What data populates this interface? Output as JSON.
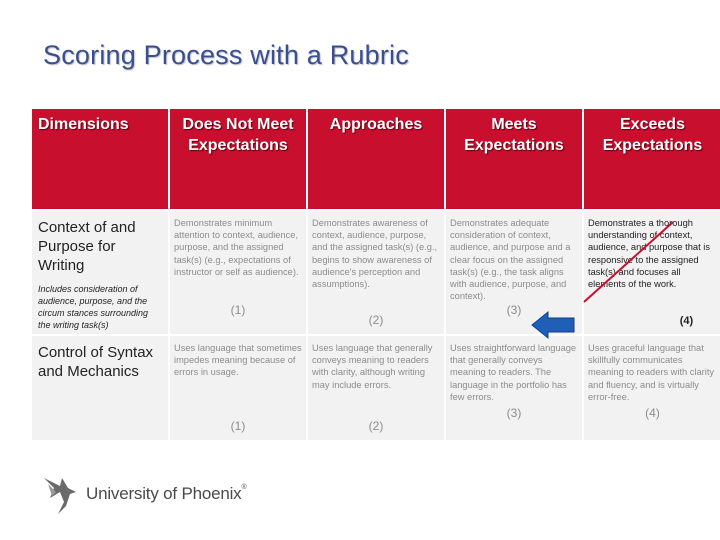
{
  "slide": {
    "title": "Scoring Process with a Rubric"
  },
  "table": {
    "headers": {
      "dimensions": "Dimensions",
      "does_not_meet": "Does Not Meet Expectations",
      "approaches": "Approaches",
      "meets": "Meets Expectations",
      "exceeds": "Exceeds Expectations"
    },
    "rows": [
      {
        "dimension": "Context of and Purpose for Writing",
        "note": "Includes consideration of audience, purpose, and the circum stances surrounding the writing task(s)",
        "cells": [
          {
            "text": "Demonstrates minimum attention to context, audience, purpose, and the assigned task(s) (e.g., expectations of instructor or self as audience).",
            "score": "(1)"
          },
          {
            "text": "Demonstrates awareness of context, audience, purpose, and the assigned task(s) (e.g., begins to show awareness of audience's perception and assumptions).",
            "score": "(2)"
          },
          {
            "text": "Demonstrates adequate consideration of context, audience, and purpose and a clear focus on the assigned task(s) (e.g., the task aligns with audience, purpose, and context).",
            "score": "(3)"
          },
          {
            "text": "Demonstrates a thorough understanding of context, audience, and purpose that is responsive to the assigned task(s) and focuses all elements of the work.",
            "score": "(4)"
          }
        ]
      },
      {
        "dimension": "Control of Syntax and Mechanics",
        "note": "",
        "cells": [
          {
            "text": "Uses language that sometimes impedes meaning because of errors in usage.",
            "score": "(1)"
          },
          {
            "text": "Uses language that generally conveys meaning to readers with clarity, although writing may include errors.",
            "score": "(2)"
          },
          {
            "text": "Uses straightforward language that generally conveys meaning to readers. The language in the portfolio has few errors.",
            "score": "(3)"
          },
          {
            "text": "Uses graceful language that skillfully communicates meaning to readers with clarity and fluency, and is virtually error-free.",
            "score": "(4)"
          }
        ]
      }
    ]
  },
  "annotations": {
    "arrow_color": "#1f5fb8",
    "pen_color": "#c8102e"
  },
  "logo": {
    "text": "University of Phoenix",
    "reg": "®",
    "icon": "phoenix-bird-icon"
  }
}
